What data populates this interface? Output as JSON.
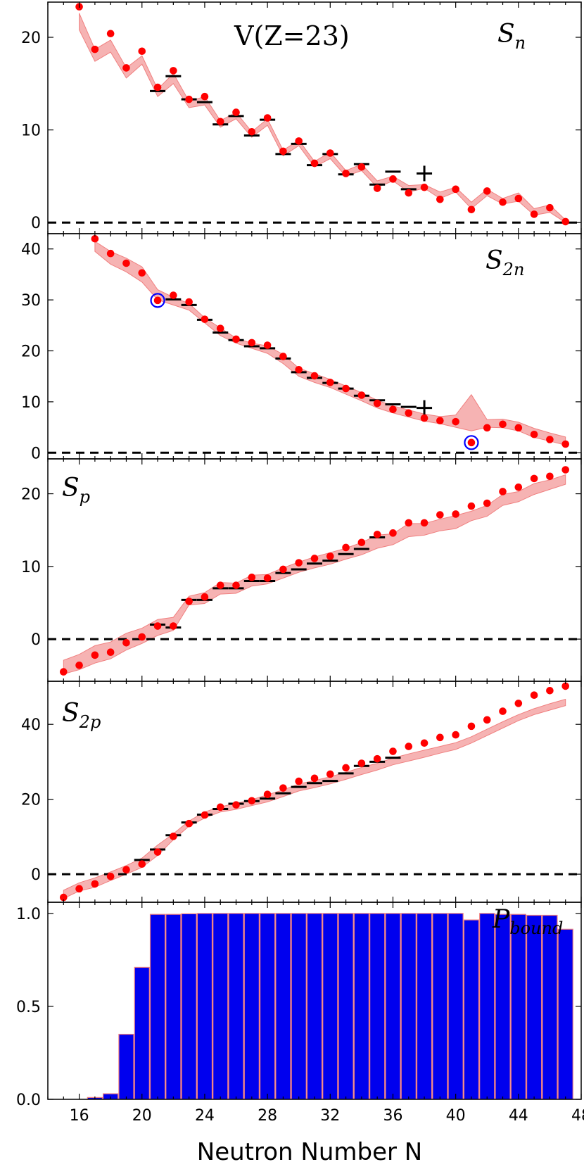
{
  "figure": {
    "title": "V(Z=23)",
    "xlabel": "Neutron Number N",
    "x_ticks": [
      16,
      20,
      24,
      28,
      32,
      36,
      40,
      44,
      48
    ],
    "x_range": [
      14,
      48
    ]
  },
  "chart_data": [
    {
      "type": "scatter",
      "panel": "Sn",
      "label": "S_n",
      "ylim": [
        -1.2,
        23.8
      ],
      "y_ticks": [
        0,
        10,
        20
      ],
      "band_color": "#f08080",
      "pred_color": "#ff0000",
      "exp_color": "#000000",
      "prediction": {
        "x": [
          16,
          17,
          18,
          19,
          20,
          21,
          22,
          23,
          24,
          25,
          26,
          27,
          28,
          29,
          30,
          31,
          32,
          33,
          34,
          35,
          36,
          37,
          38,
          39,
          40,
          41,
          42,
          43,
          44,
          45,
          46,
          47
        ],
        "y": [
          23.3,
          18.7,
          20.4,
          16.7,
          18.5,
          14.6,
          16.4,
          13.3,
          13.6,
          10.9,
          11.9,
          9.8,
          11.3,
          7.7,
          8.8,
          6.4,
          7.5,
          5.3,
          6.0,
          3.7,
          4.7,
          3.2,
          3.8,
          2.5,
          3.6,
          1.4,
          3.4,
          2.2,
          2.6,
          0.9,
          1.6,
          0.1
        ]
      },
      "band": {
        "x": [
          16,
          17,
          18,
          19,
          20,
          21,
          22,
          23,
          24,
          25,
          26,
          27,
          28,
          29,
          30,
          31,
          32,
          33,
          34,
          35,
          36,
          37,
          38,
          39,
          40,
          41,
          42,
          43,
          44,
          45,
          46,
          47
        ],
        "lower": [
          20.8,
          17.4,
          18.4,
          15.6,
          17.1,
          13.6,
          15.0,
          12.4,
          12.7,
          10.3,
          11.2,
          9.2,
          10.5,
          7.2,
          8.3,
          6.0,
          6.9,
          5.0,
          5.6,
          3.8,
          4.5,
          3.3,
          3.7,
          2.6,
          3.3,
          1.5,
          2.9,
          2.0,
          2.3,
          0.8,
          1.1,
          0.0
        ],
        "upper": [
          22.6,
          18.7,
          19.7,
          16.7,
          18.0,
          14.4,
          16.1,
          13.1,
          13.6,
          11.0,
          11.9,
          9.8,
          11.2,
          7.8,
          8.9,
          6.6,
          7.6,
          5.6,
          6.3,
          4.5,
          5.0,
          4.0,
          4.1,
          3.3,
          3.8,
          2.2,
          3.6,
          2.6,
          3.2,
          1.5,
          1.9,
          0.3
        ]
      },
      "experiment": {
        "x": [
          21,
          22,
          23,
          24,
          25,
          26,
          27,
          28,
          29,
          30,
          31,
          32,
          33,
          34,
          35,
          36,
          37,
          38
        ],
        "y": [
          14.2,
          15.8,
          13.3,
          13.0,
          10.6,
          11.5,
          9.4,
          11.1,
          7.4,
          8.5,
          6.2,
          7.4,
          5.2,
          6.3,
          4.1,
          5.5,
          3.6,
          5.3
        ],
        "cross_at": 38
      }
    },
    {
      "type": "scatter",
      "panel": "S2n",
      "label": "S_{2n}",
      "ylim": [
        -1.2,
        43.0
      ],
      "y_ticks": [
        0,
        10,
        20,
        30,
        40
      ],
      "prediction": {
        "x": [
          17,
          18,
          19,
          20,
          21,
          22,
          23,
          24,
          25,
          26,
          27,
          28,
          29,
          30,
          31,
          32,
          33,
          34,
          35,
          36,
          37,
          38,
          39,
          40,
          41,
          42,
          43,
          44,
          45,
          46,
          47
        ],
        "y": [
          42.0,
          39.1,
          37.2,
          35.3,
          29.9,
          30.9,
          29.6,
          26.2,
          24.4,
          22.3,
          21.6,
          21.1,
          18.9,
          16.3,
          15.1,
          13.8,
          12.6,
          11.3,
          9.7,
          8.5,
          7.8,
          6.8,
          6.3,
          6.1,
          2.0,
          4.9,
          5.6,
          4.9,
          3.6,
          2.6,
          1.7
        ]
      },
      "band": {
        "x": [
          17,
          18,
          19,
          20,
          21,
          22,
          23,
          24,
          25,
          26,
          27,
          28,
          29,
          30,
          31,
          32,
          33,
          34,
          35,
          36,
          37,
          38,
          39,
          40,
          41,
          42,
          43,
          44,
          45,
          46,
          47
        ],
        "lower": [
          39.5,
          37.0,
          35.5,
          33.5,
          30.0,
          29.0,
          28.0,
          25.5,
          23.0,
          21.5,
          20.5,
          19.5,
          17.5,
          15.0,
          13.8,
          12.8,
          11.5,
          10.2,
          8.8,
          7.8,
          7.0,
          6.2,
          5.7,
          5.0,
          4.3,
          5.0,
          4.9,
          4.3,
          3.0,
          2.3,
          1.5
        ],
        "upper": [
          41.5,
          39.5,
          38.2,
          36.5,
          32.0,
          30.5,
          29.3,
          26.5,
          24.5,
          22.5,
          21.5,
          21.0,
          19.3,
          16.6,
          15.5,
          14.4,
          13.1,
          11.8,
          10.3,
          9.2,
          8.4,
          7.6,
          7.1,
          7.4,
          11.4,
          6.5,
          6.6,
          6.0,
          4.8,
          3.9,
          3.1
        ]
      },
      "circled_x": [
        21,
        41
      ],
      "circle_color": "#0000ff",
      "experiment": {
        "x": [
          22,
          23,
          24,
          25,
          26,
          27,
          28,
          29,
          30,
          31,
          32,
          33,
          34,
          35,
          36,
          37,
          38
        ],
        "y": [
          30.1,
          29.0,
          26.1,
          23.6,
          22.1,
          20.9,
          20.5,
          18.5,
          15.8,
          14.7,
          13.7,
          12.6,
          11.2,
          10.3,
          9.5,
          9.0,
          8.8
        ],
        "cross_at": 38
      }
    },
    {
      "type": "scatter",
      "panel": "Sp",
      "label": "S_p",
      "ylim": [
        -5.8,
        24.8
      ],
      "y_ticks": [
        0,
        10,
        20
      ],
      "prediction": {
        "x": [
          15,
          16,
          17,
          18,
          19,
          20,
          21,
          22,
          23,
          24,
          25,
          26,
          27,
          28,
          29,
          30,
          31,
          32,
          33,
          34,
          35,
          36,
          37,
          38,
          39,
          40,
          41,
          42,
          43,
          44,
          45,
          46,
          47
        ],
        "y": [
          -4.5,
          -3.6,
          -2.2,
          -1.8,
          -0.5,
          0.3,
          1.8,
          1.8,
          5.2,
          5.8,
          7.4,
          7.4,
          8.5,
          8.4,
          9.6,
          10.5,
          11.1,
          11.4,
          12.6,
          13.3,
          14.4,
          14.6,
          16.0,
          16.0,
          17.1,
          17.2,
          18.3,
          18.7,
          20.3,
          20.9,
          22.1,
          22.4,
          23.3
        ]
      },
      "band": {
        "x": [
          15,
          16,
          17,
          18,
          19,
          20,
          21,
          22,
          23,
          24,
          25,
          26,
          27,
          28,
          29,
          30,
          31,
          32,
          33,
          34,
          35,
          36,
          37,
          38,
          39,
          40,
          41,
          42,
          43,
          44,
          45,
          46,
          47
        ],
        "lower": [
          -4.8,
          -4.2,
          -3.3,
          -2.7,
          -1.5,
          -0.6,
          0.5,
          1.2,
          4.7,
          4.9,
          6.2,
          6.3,
          7.3,
          7.6,
          8.4,
          9.2,
          9.8,
          10.3,
          11.0,
          11.6,
          12.5,
          13.0,
          14.1,
          14.3,
          14.9,
          15.2,
          16.3,
          16.9,
          18.4,
          18.9,
          19.9,
          20.6,
          21.3
        ],
        "upper": [
          -2.9,
          -2.1,
          -0.9,
          -0.4,
          0.8,
          1.5,
          2.7,
          3.0,
          5.9,
          6.4,
          7.8,
          7.7,
          8.8,
          8.9,
          9.8,
          10.6,
          11.3,
          11.9,
          12.5,
          13.3,
          14.3,
          14.5,
          15.9,
          15.9,
          16.5,
          17.0,
          17.6,
          18.4,
          19.9,
          20.3,
          21.4,
          21.9,
          22.6
        ]
      },
      "experiment": {
        "x": [
          21,
          22,
          23,
          24,
          25,
          26,
          27,
          28,
          29,
          30,
          31,
          32,
          33,
          34,
          35
        ],
        "y": [
          2.0,
          1.6,
          5.4,
          5.4,
          7.0,
          7.0,
          8.0,
          8.0,
          9.1,
          9.6,
          10.4,
          10.8,
          11.7,
          12.4,
          14.0
        ]
      }
    },
    {
      "type": "scatter",
      "panel": "S2p",
      "label": "S_{2p}",
      "ylim": [
        -7.5,
        51.5
      ],
      "y_ticks": [
        0,
        20,
        40
      ],
      "prediction": {
        "x": [
          15,
          16,
          17,
          18,
          19,
          20,
          21,
          22,
          23,
          24,
          25,
          26,
          27,
          28,
          29,
          30,
          31,
          32,
          33,
          34,
          35,
          36,
          37,
          38,
          39,
          40,
          41,
          42,
          43,
          44,
          45,
          46,
          47
        ],
        "y": [
          -6.2,
          -3.9,
          -2.6,
          -0.6,
          1.2,
          2.7,
          5.9,
          10.1,
          13.5,
          15.8,
          17.9,
          18.5,
          19.6,
          21.3,
          23.0,
          24.8,
          25.6,
          26.7,
          28.4,
          29.6,
          30.8,
          32.8,
          34.1,
          35.0,
          36.5,
          37.2,
          39.5,
          41.2,
          43.5,
          45.6,
          47.8,
          49.0,
          50.2
        ]
      },
      "band": {
        "x": [
          15,
          16,
          17,
          18,
          19,
          20,
          21,
          22,
          23,
          24,
          25,
          26,
          27,
          28,
          29,
          30,
          31,
          32,
          33,
          34,
          35,
          36,
          37,
          38,
          39,
          40,
          41,
          42,
          43,
          44,
          45,
          46,
          47
        ],
        "lower": [
          -6.5,
          -4.5,
          -3.5,
          -1.7,
          0.0,
          1.8,
          5.0,
          9.2,
          12.8,
          15.0,
          16.6,
          17.3,
          18.3,
          19.3,
          20.7,
          22.2,
          23.1,
          24.1,
          25.3,
          26.6,
          27.8,
          29.2,
          30.2,
          31.2,
          32.3,
          33.3,
          35.0,
          37.0,
          39.0,
          41.0,
          42.6,
          43.8,
          45.0
        ],
        "upper": [
          -4.3,
          -2.3,
          -1.0,
          0.6,
          2.3,
          4.3,
          7.8,
          10.8,
          14.2,
          16.6,
          18.0,
          18.9,
          19.9,
          21.2,
          22.5,
          24.1,
          25.0,
          26.0,
          27.2,
          28.5,
          29.6,
          31.0,
          32.1,
          33.1,
          34.1,
          35.1,
          36.7,
          38.7,
          40.7,
          42.6,
          44.2,
          45.5,
          46.7
        ]
      },
      "experiment": {
        "x": [
          20,
          21,
          22,
          23,
          24,
          25,
          26,
          27,
          28,
          29,
          30,
          31,
          32,
          33,
          34,
          35,
          36
        ],
        "y": [
          3.8,
          6.6,
          10.4,
          13.8,
          15.9,
          17.4,
          18.8,
          19.5,
          20.2,
          21.6,
          23.3,
          24.3,
          24.9,
          26.9,
          28.9,
          30.0,
          31.1
        ]
      }
    },
    {
      "type": "bar",
      "panel": "Pbound",
      "label": "P_bound",
      "ylim": [
        0,
        1.06
      ],
      "y_ticks": [
        0.0,
        0.5,
        1.0
      ],
      "y_tick_labels": [
        "0.0",
        "0.5",
        "1.0"
      ],
      "bar_color": "#0000ee",
      "bar_edge": "#f08080",
      "categories": [
        15,
        16,
        17,
        18,
        19,
        20,
        21,
        22,
        23,
        24,
        25,
        26,
        27,
        28,
        29,
        30,
        31,
        32,
        33,
        34,
        35,
        36,
        37,
        38,
        39,
        40,
        41,
        42,
        43,
        44,
        45,
        46,
        47
      ],
      "values": [
        0.0,
        0.0,
        0.01,
        0.03,
        0.35,
        0.71,
        0.995,
        0.995,
        0.998,
        1.0,
        1.0,
        1.0,
        1.0,
        1.0,
        1.0,
        1.0,
        1.0,
        1.0,
        1.0,
        1.0,
        1.0,
        1.0,
        1.0,
        1.0,
        1.0,
        1.0,
        0.965,
        1.0,
        0.995,
        0.995,
        0.99,
        0.99,
        0.915
      ]
    }
  ]
}
